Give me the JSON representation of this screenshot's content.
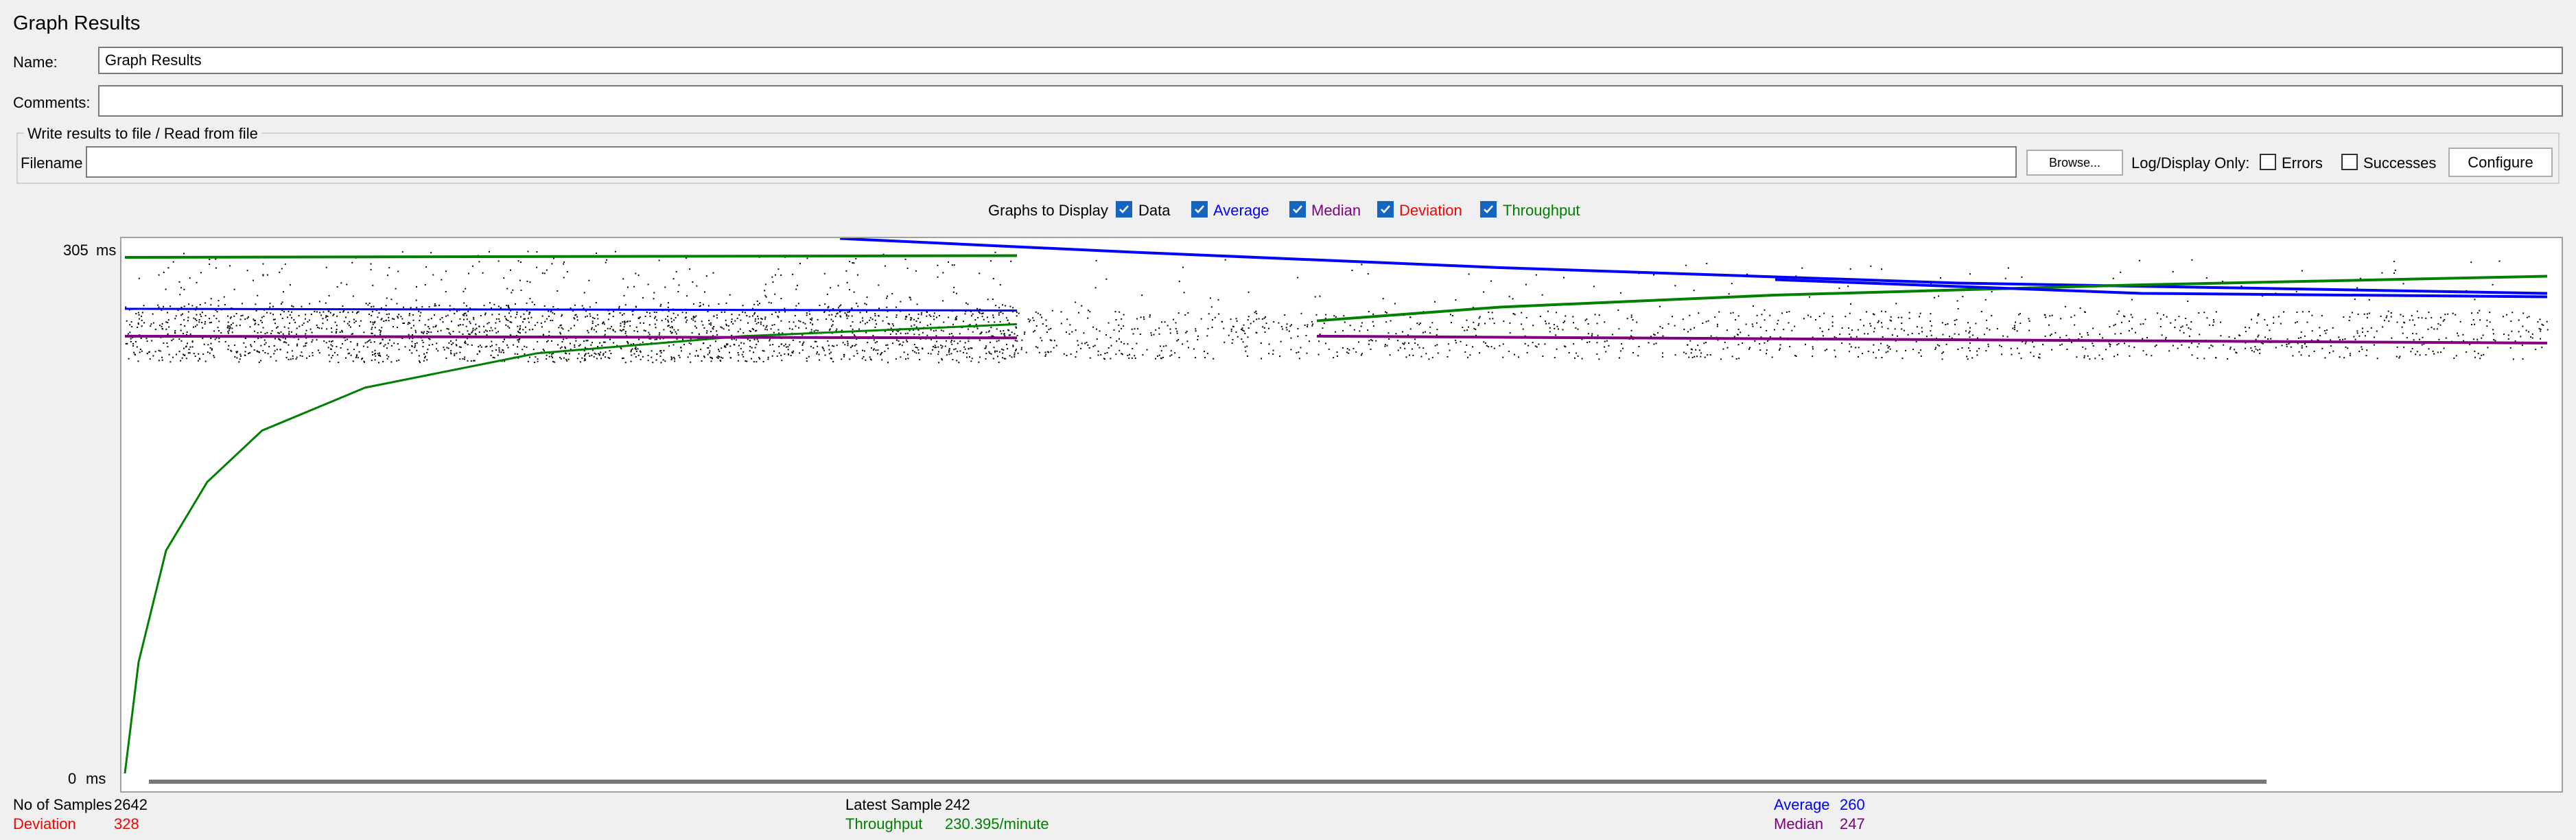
{
  "panel": {
    "title": "Graph Results",
    "name_label": "Name:",
    "name_value": "Graph Results",
    "comments_label": "Comments:",
    "comments_value": ""
  },
  "file_group": {
    "title": "Write results to file / Read from file",
    "filename_label": "Filename",
    "filename_value": "",
    "browse_label": "Browse...",
    "log_display_label": "Log/Display Only:",
    "errors_label": "Errors",
    "errors_checked": false,
    "successes_label": "Successes",
    "successes_checked": false,
    "configure_label": "Configure"
  },
  "graphs_to_display": {
    "label": "Graphs to Display",
    "options": [
      {
        "label": "Data",
        "checked": true,
        "color": "#000000"
      },
      {
        "label": "Average",
        "checked": true,
        "color": "#0000ff"
      },
      {
        "label": "Median",
        "checked": true,
        "color": "#800080"
      },
      {
        "label": "Deviation",
        "checked": true,
        "color": "#ff0000"
      },
      {
        "label": "Throughput",
        "checked": true,
        "color": "#008000"
      }
    ]
  },
  "chart_data": {
    "type": "line",
    "y_max_label": "305",
    "y_min_label": "0",
    "y_unit": "ms",
    "ylim": [
      0,
      305
    ],
    "samples": 2642,
    "colors": {
      "data": "#000000",
      "average": "#0000ff",
      "median": "#800080",
      "deviation": "#ff0000",
      "throughput": "#008000"
    },
    "series_left": {
      "throughput": [
        [
          0,
          0
        ],
        [
          20,
          65
        ],
        [
          60,
          130
        ],
        [
          120,
          170
        ],
        [
          200,
          200
        ],
        [
          350,
          225
        ],
        [
          600,
          245
        ],
        [
          900,
          255
        ],
        [
          1300,
          262
        ]
      ],
      "average": [
        [
          0,
          271
        ],
        [
          1300,
          270
        ]
      ],
      "median": [
        [
          0,
          255
        ],
        [
          1300,
          254
        ]
      ],
      "data_band": [
        240,
        275
      ]
    },
    "series_right": {
      "throughput_prev": [
        [
          0,
          301
        ],
        [
          1300,
          302
        ]
      ],
      "average_prev": [
        [
          780,
          312
        ],
        [
          1100,
          304
        ],
        [
          1500,
          295
        ],
        [
          2000,
          286
        ],
        [
          2642,
          280
        ]
      ],
      "throughput": [
        [
          1300,
          264
        ],
        [
          1500,
          272
        ],
        [
          1800,
          279
        ],
        [
          2200,
          285
        ],
        [
          2642,
          290
        ]
      ],
      "average": [
        [
          1800,
          288
        ],
        [
          2200,
          280
        ],
        [
          2642,
          278
        ]
      ],
      "median": [
        [
          1300,
          255
        ],
        [
          2642,
          251
        ]
      ],
      "data_band": [
        242,
        270
      ]
    }
  },
  "stats": {
    "samples_label": "No of Samples",
    "samples_value": "2642",
    "latest_label": "Latest Sample",
    "latest_value": "242",
    "average_label": "Average",
    "average_value": "260",
    "deviation_label": "Deviation",
    "deviation_value": "328",
    "throughput_label": "Throughput",
    "throughput_value": "230.395/minute",
    "median_label": "Median",
    "median_value": "247"
  }
}
